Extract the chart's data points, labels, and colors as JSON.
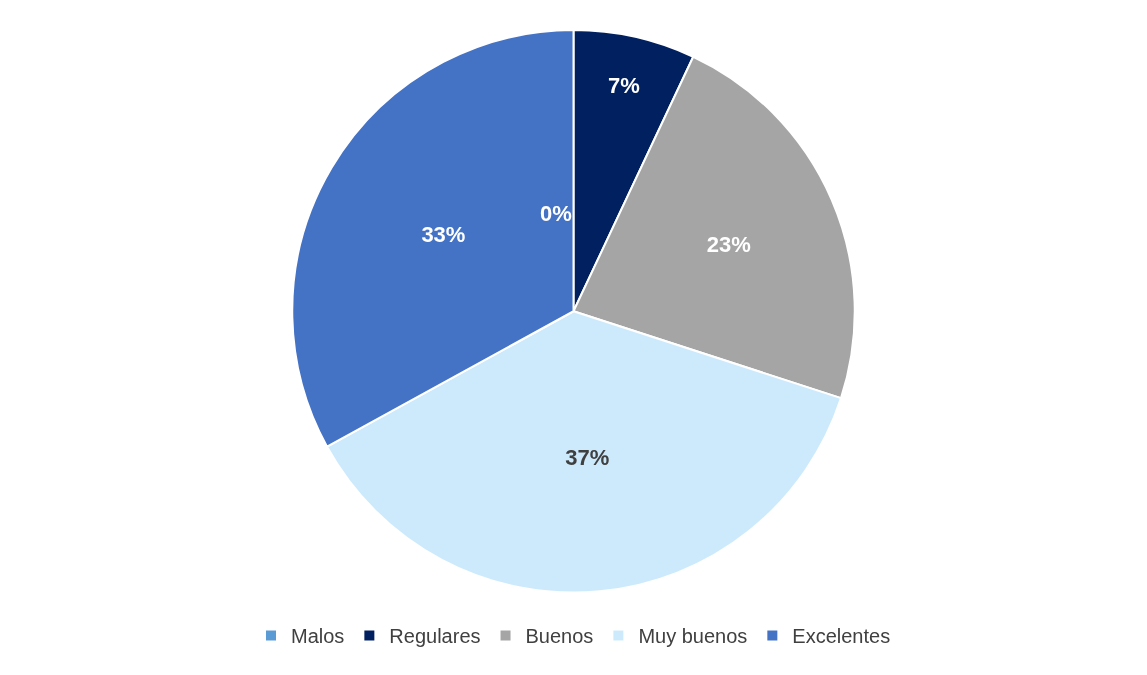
{
  "chart_data": {
    "type": "pie",
    "categories": [
      "Malos",
      "Regulares",
      "Buenos",
      "Muy buenos",
      "Excelentes"
    ],
    "values": [
      0,
      7,
      23,
      37,
      33
    ],
    "colors": [
      "#5b9bd5",
      "#002060",
      "#a5a5a5",
      "#cdeafd",
      "#4472c4"
    ],
    "data_labels": true,
    "value_labels": [
      "0%",
      "7%",
      "23%",
      "37%",
      "33%"
    ],
    "legend": "bottom"
  }
}
